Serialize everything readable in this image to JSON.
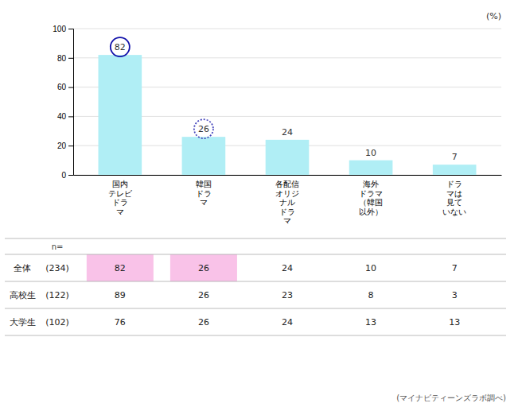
{
  "chart_data": {
    "type": "bar",
    "categories": [
      "国内\nテレビ\nドラ\nマ",
      "韓国\nドラ\nマ",
      "各配信\nオリジ\nナル\nドラ\nマ",
      "海外\nドラマ\n（韓国\n以外）",
      "ドラ\nマは\n見て\nいない"
    ],
    "values": [
      82,
      26,
      24,
      10,
      7
    ],
    "color": "#b0eef5",
    "ylim": [
      0,
      100
    ],
    "yticks": [
      0,
      20,
      40,
      60,
      80,
      100
    ],
    "grid": true,
    "data_labels": true,
    "ylabel": "(%)",
    "source": "(マイナビティーンズラボ調べ)",
    "circled": [
      {
        "index": 0,
        "color": "#1111aa",
        "line_style": "solid"
      },
      {
        "index": 1,
        "color": "#4444bb",
        "line_style": "dotted"
      }
    ],
    "table": {
      "header": "n=",
      "row_labels": [
        "全体",
        "高校生",
        "大学生"
      ],
      "row_n": [
        "(234)",
        "(122)",
        "(102)"
      ],
      "values": [
        [
          82,
          26,
          24,
          10,
          7
        ],
        [
          89,
          26,
          23,
          8,
          3
        ],
        [
          76,
          26,
          24,
          13,
          13
        ]
      ],
      "highlight": {
        "row": 0,
        "cols": [
          0,
          1
        ],
        "color": "#f9c2e8"
      }
    }
  }
}
